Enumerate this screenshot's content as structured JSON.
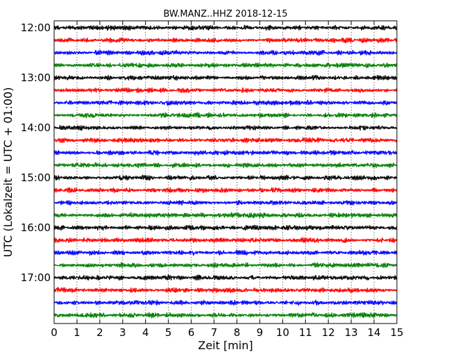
{
  "chart_data": {
    "type": "line",
    "title": "BW.MANZ..HHZ 2018-12-15",
    "xlabel": "Zeit  [min]",
    "ylabel": "UTC (Lokalzeit = UTC + 01:00)",
    "xlim": [
      0,
      15
    ],
    "x_ticks": [
      "0",
      "1",
      "2",
      "3",
      "4",
      "5",
      "6",
      "7",
      "8",
      "9",
      "10",
      "11",
      "12",
      "13",
      "14",
      "15"
    ],
    "y_tick_labels": [
      "12:00",
      "13:00",
      "14:00",
      "15:00",
      "16:00",
      "17:00"
    ],
    "grid": "vertical dotted lines at each minute",
    "trace_start_times": [
      "12:00",
      "12:15",
      "12:30",
      "12:45",
      "13:00",
      "13:15",
      "13:30",
      "13:45",
      "14:00",
      "14:15",
      "14:30",
      "14:45",
      "15:00",
      "15:15",
      "15:30",
      "15:45",
      "16:00",
      "16:15",
      "16:30",
      "16:45",
      "17:00",
      "17:15",
      "17:30",
      "17:45"
    ],
    "trace_colors": [
      "#000000",
      "#ff0000",
      "#0000ff",
      "#007f00"
    ],
    "trace_duration_min": 15
  }
}
